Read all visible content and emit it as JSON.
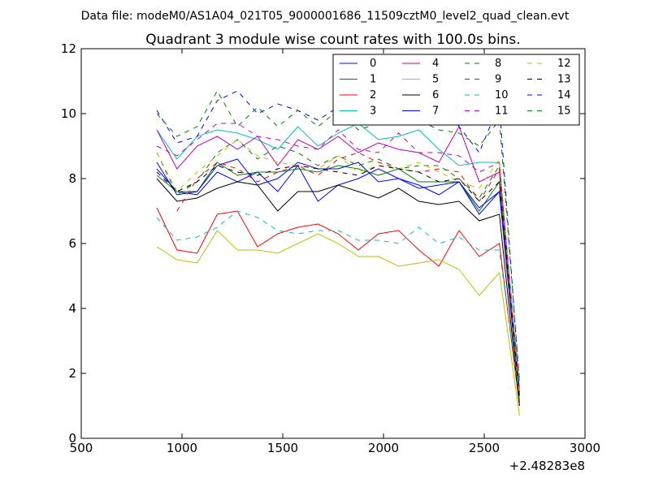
{
  "figure": {
    "suptitle": "Data file: modeM0/AS1A04_021T05_9000001686_11509cztM0_level2_quad_clean.evt"
  },
  "chart_data": {
    "type": "line",
    "title": "Quadrant 3 module wise count rates with 100.0s bins.",
    "xlabel": "",
    "ylabel": "",
    "xlim": [
      500,
      3000
    ],
    "ylim": [
      0,
      12
    ],
    "xticks": [
      500,
      1000,
      1500,
      2000,
      2500,
      3000
    ],
    "yticks": [
      0,
      2,
      4,
      6,
      8,
      10,
      12
    ],
    "x_offset_label": "+2.48283e8",
    "grid": false,
    "legend_placement": "top-right",
    "legend_columns": 4,
    "x": [
      875,
      975,
      1075,
      1175,
      1275,
      1375,
      1475,
      1575,
      1675,
      1775,
      1875,
      1975,
      2075,
      2175,
      2275,
      2375,
      2475,
      2575,
      2675
    ],
    "series": [
      {
        "name": "0",
        "color": "#0000ff",
        "dash": "solid",
        "values": [
          8.3,
          7.6,
          7.5,
          8.2,
          7.9,
          8.2,
          7.6,
          8.4,
          7.3,
          7.8,
          8.0,
          8.3,
          8.0,
          7.8,
          7.5,
          7.9,
          6.9,
          7.6,
          1.2
        ]
      },
      {
        "name": "1",
        "color": "#008000",
        "dash": "solid",
        "values": [
          8.1,
          7.6,
          7.6,
          8.5,
          8.1,
          8.2,
          8.2,
          8.3,
          8.2,
          8.4,
          8.3,
          8.1,
          8.3,
          7.9,
          7.9,
          7.9,
          7.0,
          7.9,
          1.1
        ]
      },
      {
        "name": "2",
        "color": "#ff0000",
        "dash": "solid",
        "values": [
          7.1,
          5.8,
          5.7,
          6.9,
          7.0,
          5.9,
          6.3,
          6.5,
          6.6,
          6.3,
          5.8,
          6.3,
          6.4,
          5.8,
          5.3,
          6.4,
          5.6,
          6.0,
          1.0
        ]
      },
      {
        "name": "3",
        "color": "#00bfbf",
        "dash": "solid",
        "values": [
          9.5,
          8.6,
          9.3,
          9.5,
          9.4,
          9.2,
          8.9,
          9.6,
          9.0,
          9.4,
          9.7,
          9.2,
          9.3,
          9.5,
          8.9,
          8.4,
          8.5,
          8.5,
          1.5
        ]
      },
      {
        "name": "4",
        "color": "#bf00bf",
        "dash": "solid",
        "values": [
          9.5,
          8.3,
          9.0,
          9.3,
          8.9,
          9.3,
          8.4,
          9.2,
          8.9,
          9.3,
          8.8,
          9.1,
          8.9,
          8.8,
          8.5,
          9.6,
          7.9,
          8.2,
          1.3
        ]
      },
      {
        "name": "5",
        "color": "#bfbf00",
        "dash": "solid",
        "values": [
          5.9,
          5.5,
          5.4,
          6.4,
          5.8,
          5.8,
          5.7,
          6.0,
          6.3,
          6.0,
          5.6,
          5.6,
          5.3,
          5.4,
          5.5,
          5.2,
          4.4,
          5.1,
          0.7
        ]
      },
      {
        "name": "6",
        "color": "#000000",
        "dash": "solid",
        "values": [
          8.0,
          7.3,
          7.4,
          7.7,
          7.9,
          7.8,
          7.0,
          7.6,
          7.6,
          7.8,
          7.6,
          7.4,
          7.7,
          7.3,
          7.2,
          7.3,
          6.7,
          6.9,
          1.0
        ]
      },
      {
        "name": "7",
        "color": "#0000ff",
        "dash": "solid",
        "values": [
          8.5,
          7.5,
          7.6,
          8.4,
          8.6,
          7.8,
          8.0,
          8.5,
          8.3,
          8.3,
          8.5,
          7.9,
          8.0,
          7.7,
          7.8,
          7.9,
          7.1,
          7.6,
          1.3
        ]
      },
      {
        "name": "8",
        "color": "#008000",
        "dash": "dashed",
        "values": [
          8.8,
          7.5,
          7.9,
          8.8,
          9.2,
          8.6,
          9.0,
          8.8,
          8.4,
          8.7,
          8.4,
          8.6,
          8.3,
          8.4,
          8.4,
          8.0,
          7.4,
          8.4,
          1.3
        ]
      },
      {
        "name": "9",
        "color": "#ff0000",
        "dash": "dashed",
        "values": [
          null,
          7.0,
          8.0,
          8.5,
          8.3,
          7.9,
          8.2,
          8.4,
          8.1,
          8.6,
          8.8,
          8.5,
          8.3,
          8.2,
          8.3,
          8.2,
          7.3,
          8.3,
          1.4
        ]
      },
      {
        "name": "10",
        "color": "#00bfbf",
        "dash": "dashed",
        "values": [
          6.8,
          6.1,
          6.2,
          6.5,
          7.0,
          6.8,
          6.4,
          6.3,
          6.4,
          6.4,
          6.1,
          6.1,
          6.0,
          6.5,
          6.0,
          6.2,
          5.8,
          5.8,
          1.2
        ]
      },
      {
        "name": "11",
        "color": "#bf00bf",
        "dash": "dashed",
        "values": [
          9.0,
          8.7,
          9.2,
          9.7,
          9.7,
          9.3,
          9.2,
          9.0,
          8.9,
          9.5,
          8.9,
          8.8,
          9.4,
          8.8,
          8.8,
          8.7,
          8.2,
          8.5,
          1.4
        ]
      },
      {
        "name": "12",
        "color": "#bfbf00",
        "dash": "dashed",
        "values": [
          8.8,
          7.6,
          8.2,
          8.7,
          9.2,
          8.7,
          8.5,
          8.4,
          8.3,
          8.7,
          8.2,
          8.4,
          8.3,
          8.5,
          8.2,
          7.9,
          7.7,
          8.6,
          1.2
        ]
      },
      {
        "name": "13",
        "color": "#000000",
        "dash": "dashed",
        "values": [
          8.2,
          7.6,
          7.9,
          8.4,
          8.2,
          8.1,
          8.3,
          8.4,
          8.3,
          8.2,
          8.1,
          8.4,
          8.3,
          8.2,
          7.9,
          8.0,
          7.3,
          7.9,
          1.2
        ]
      },
      {
        "name": "14",
        "color": "#0000ff",
        "dash": "dashed",
        "values": [
          10.1,
          9.1,
          9.3,
          10.4,
          10.7,
          10.0,
          10.3,
          10.1,
          9.8,
          10.2,
          10.2,
          10.2,
          10.1,
          10.2,
          10.5,
          9.6,
          8.8,
          10.3,
          1.6
        ]
      },
      {
        "name": "15",
        "color": "#008000",
        "dash": "dashed",
        "values": [
          10.0,
          9.3,
          9.6,
          10.7,
          9.6,
          10.2,
          9.6,
          10.1,
          9.6,
          10.1,
          9.5,
          9.7,
          9.8,
          9.8,
          9.5,
          9.4,
          9.0,
          9.8,
          1.8
        ]
      }
    ]
  }
}
